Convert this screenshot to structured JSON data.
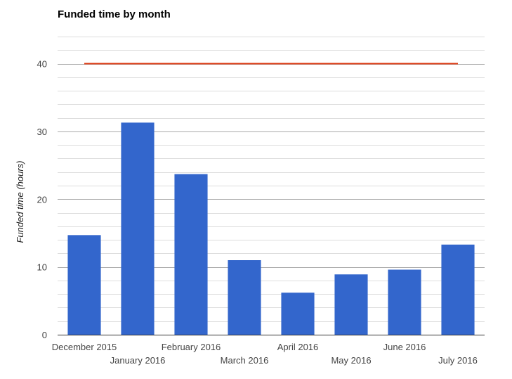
{
  "chart_data": {
    "type": "bar",
    "title": "Funded time by month",
    "xlabel": "",
    "ylabel": "Funded time (hours)",
    "categories": [
      "December 2015",
      "January 2016",
      "February 2016",
      "March 2016",
      "April 2016",
      "May 2016",
      "June 2016",
      "July 2016"
    ],
    "series": [
      {
        "values": [
          14.7,
          31.3,
          23.7,
          11.0,
          6.2,
          8.9,
          9.6,
          13.3
        ]
      }
    ],
    "reference_line": {
      "value": 40
    },
    "ylim": [
      0,
      44
    ],
    "yticks": [
      0,
      10,
      20,
      30,
      40
    ],
    "minor_grid_step": 2,
    "grid": true,
    "colors": {
      "bar": "#3366cc",
      "reference_line": "#dc3912",
      "major_grid": "#aaaaaa",
      "minor_grid": "#dddddd",
      "baseline": "#333333"
    }
  }
}
